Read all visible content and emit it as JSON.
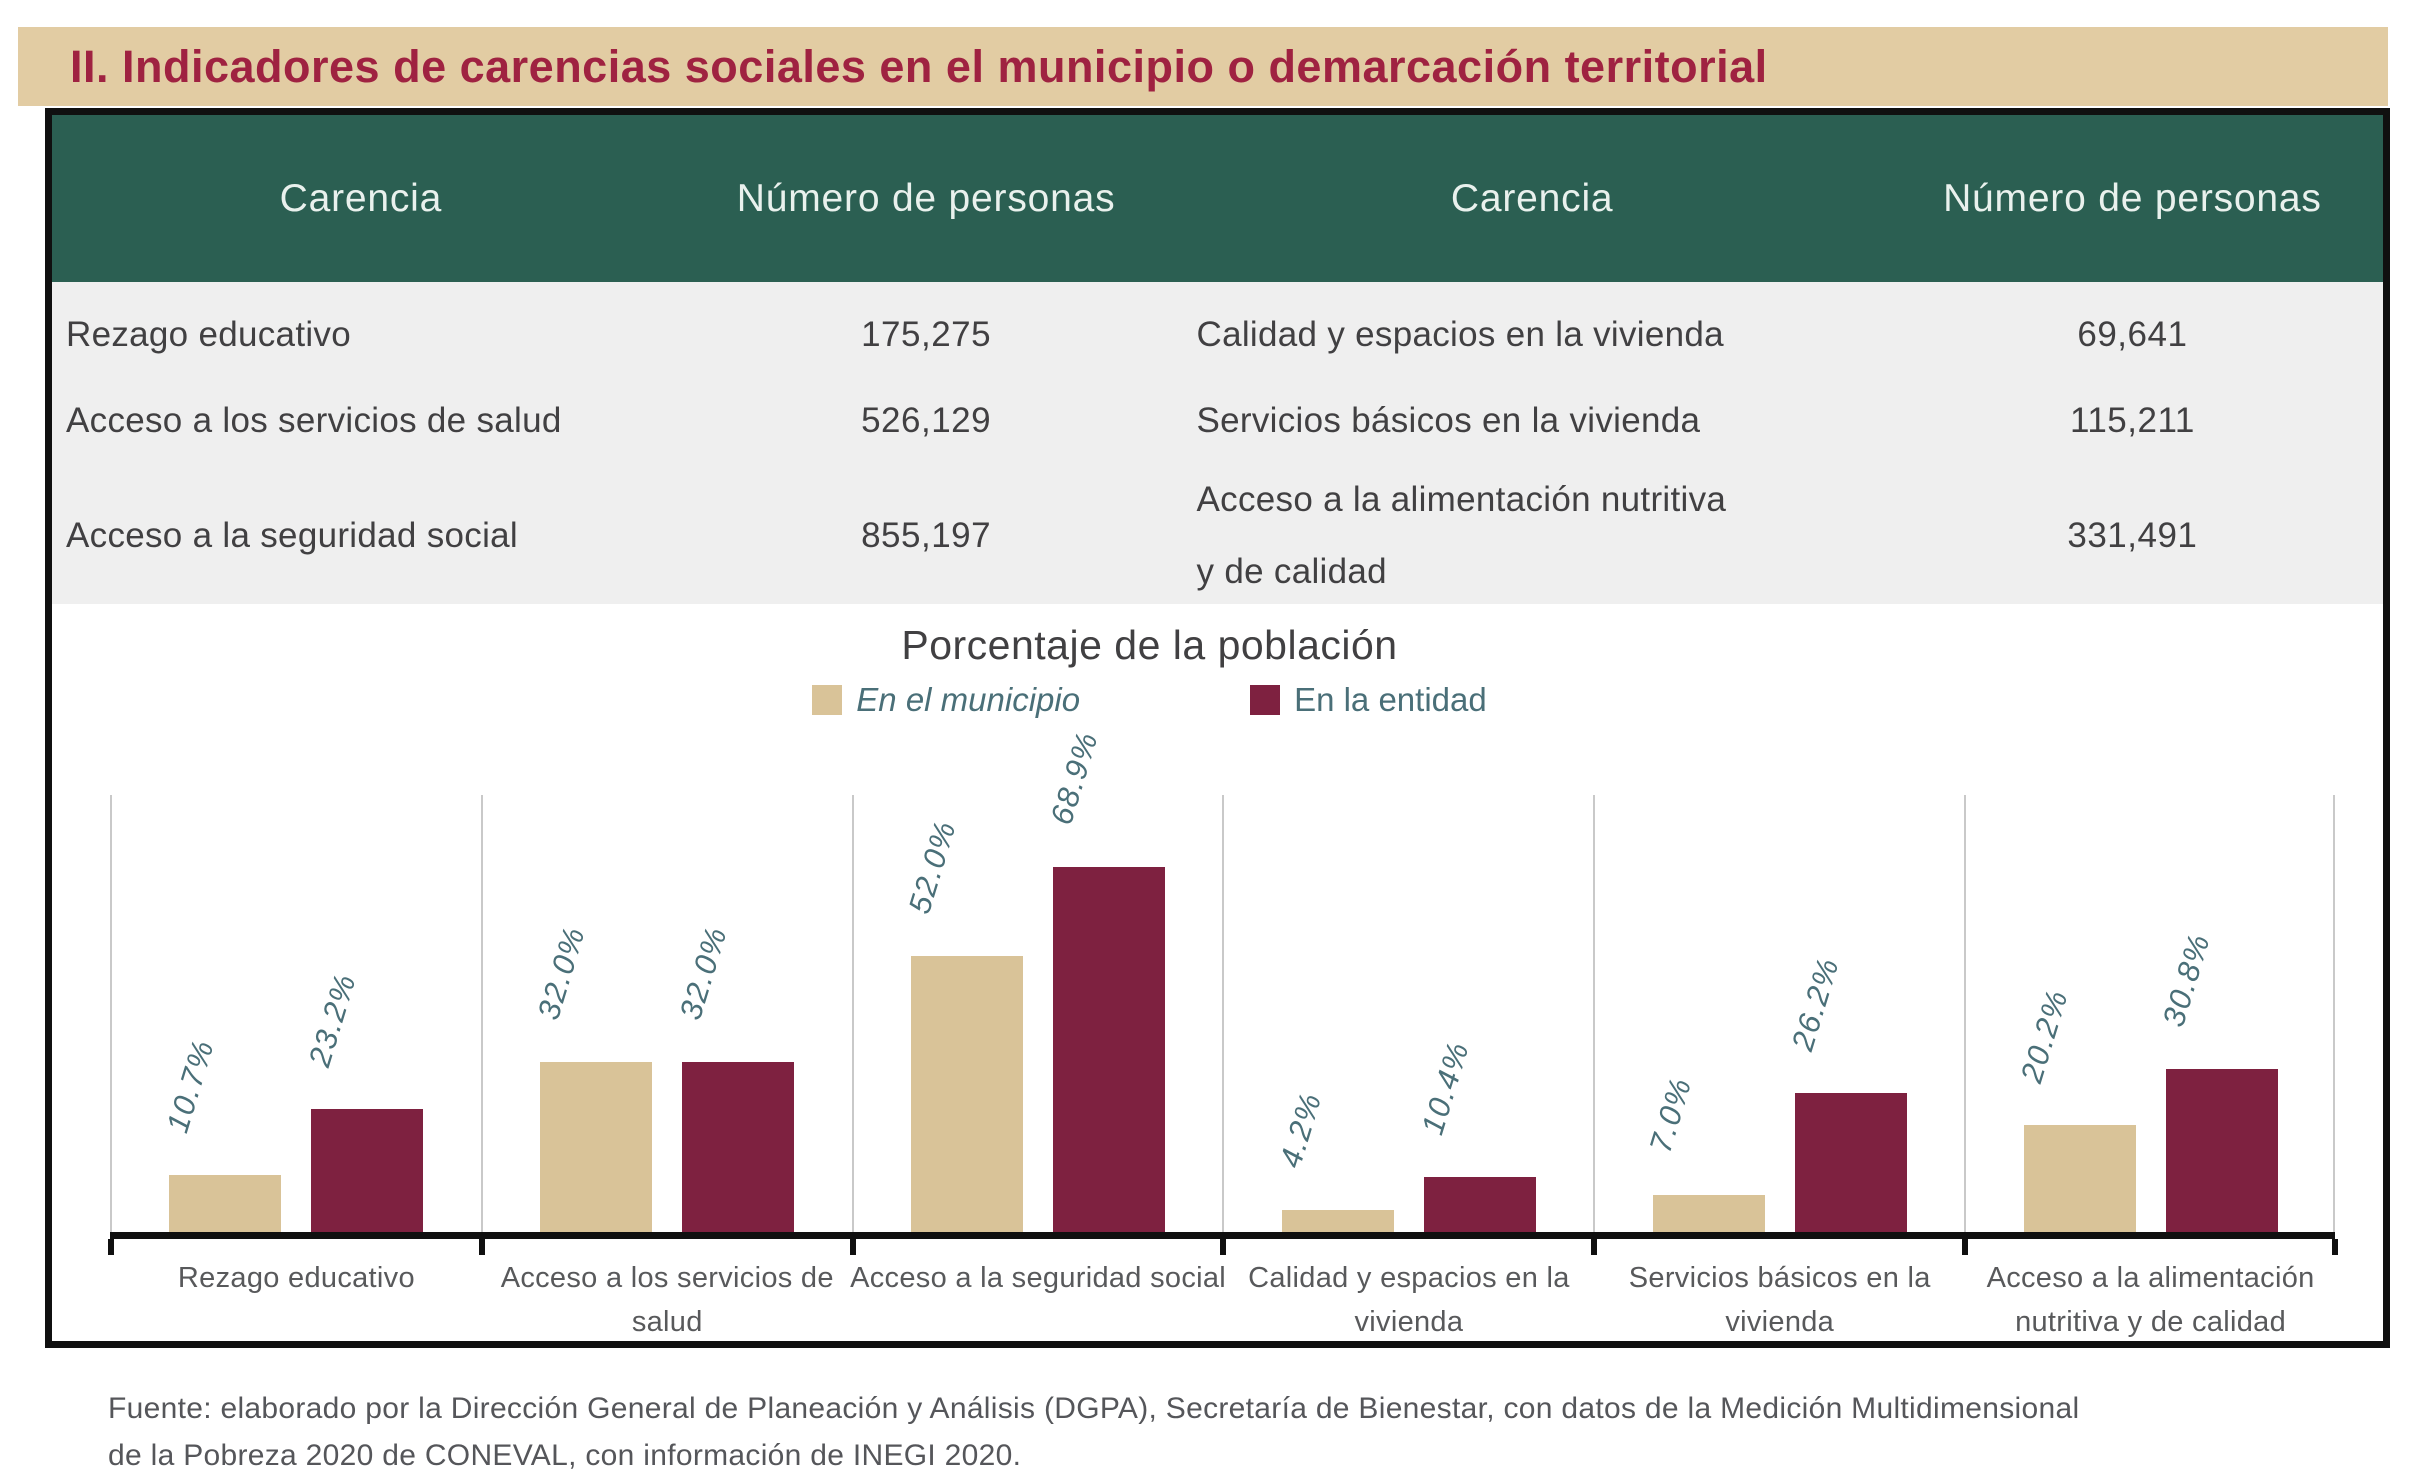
{
  "page_title": "II. Indicadores de carencias sociales en el municipio o demarcación territorial",
  "table": {
    "headers": [
      "Carencia",
      "Número de personas",
      "Carencia",
      "Número de personas"
    ],
    "rows": [
      {
        "left_label": "Rezago educativo",
        "left_value": "175,275",
        "right_label": "Calidad y espacios en la vivienda",
        "right_value": "69,641"
      },
      {
        "left_label": "Acceso a los servicios de salud",
        "left_value": "526,129",
        "right_label": "Servicios básicos en la vivienda",
        "right_value": "115,211"
      },
      {
        "left_label": "Acceso a la seguridad social",
        "left_value": "855,197",
        "right_label": "Acceso a la alimentación nutritiva\ny de calidad",
        "right_value": "331,491"
      }
    ]
  },
  "chart_data": {
    "type": "bar",
    "title": "Porcentaje de la población",
    "categories": [
      "Rezago educativo",
      "Acceso a los servicios de\nsalud",
      "Acceso a la seguridad social",
      "Calidad y espacios en la\nvivienda",
      "Servicios básicos en la\nvivienda",
      "Acceso a la alimentación\nnutritiva y de calidad"
    ],
    "series": [
      {
        "name": "En el municipio",
        "color": "#D9C398",
        "values": [
          10.7,
          32.0,
          52.0,
          4.2,
          7.0,
          20.2
        ],
        "labels": [
          "10.7%",
          "32.0%",
          "52.0%",
          "4.2%",
          "7.0%",
          "20.2%"
        ]
      },
      {
        "name": "En la entidad",
        "color": "#7E2140",
        "values": [
          23.2,
          32.0,
          68.9,
          10.4,
          26.2,
          30.8
        ],
        "labels": [
          "23.2%",
          "32.0%",
          "68.9%",
          "10.4%",
          "26.2%",
          "30.8%"
        ]
      }
    ],
    "ylim": [
      0,
      80
    ],
    "grid": "vertical-separators",
    "legend_position": "top",
    "value_label_style": "rotated-italic"
  },
  "footer": {
    "line1": "Fuente: elaborado por la Dirección General de Planeación y Análisis (DGPA), Secretaría de Bienestar, con datos de la Medición  Multidimensional",
    "line2": "de la Pobreza 2020 de CONEVAL, con información de INEGI 2020."
  },
  "colors": {
    "title_bar_bg": "#E2CCA3",
    "title_text": "#9F2241",
    "header_bg": "#2B5F52",
    "header_text": "#E9F1ED",
    "table_bg": "#EFEFEF",
    "table_text": "#414042",
    "bar_municipio": "#D9C398",
    "bar_entidad": "#7E2140",
    "value_label_text": "#4A6F78",
    "gridline": "#C9C9C9",
    "axis": "#101010",
    "category_text": "#58595B",
    "footer_text": "#55565A"
  }
}
